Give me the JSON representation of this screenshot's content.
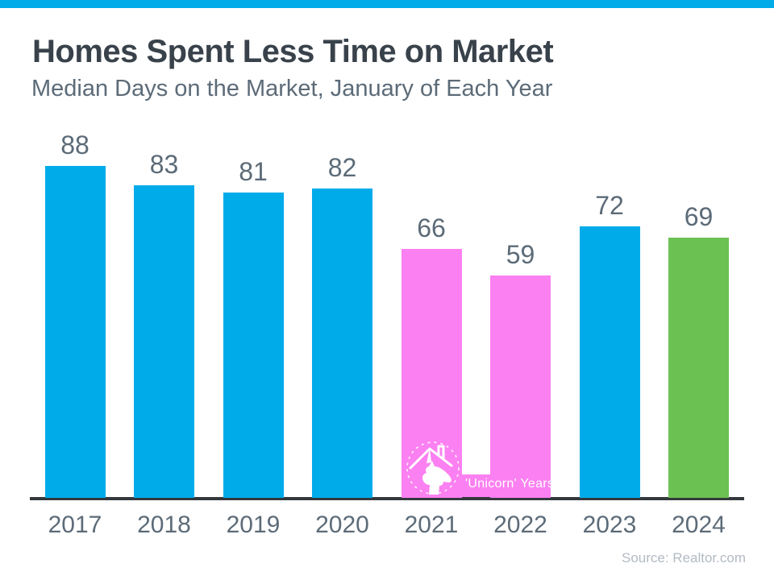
{
  "page": {
    "background": "#ffffff",
    "accent_color": "#00ABEA"
  },
  "header": {
    "title": "Homes Spent Less Time on Market",
    "subtitle": "Median Days on the Market, January of Each Year"
  },
  "footer": {
    "source": "Source: Realtor.com"
  },
  "chart_data": {
    "type": "bar",
    "title": "Homes Spent Less Time on Market",
    "subtitle": "Median Days on the Market, January of Each Year",
    "categories": [
      "2017",
      "2018",
      "2019",
      "2020",
      "2021",
      "2022",
      "2023",
      "2024"
    ],
    "values": [
      88,
      83,
      81,
      82,
      66,
      59,
      72,
      69
    ],
    "xlabel": "",
    "ylabel": "",
    "ylim": [
      0,
      95
    ],
    "grid": false,
    "legend": "none",
    "value_labels_shown": true,
    "bar_color_keys": [
      "blue",
      "blue",
      "blue",
      "blue",
      "pink",
      "pink",
      "blue",
      "green"
    ],
    "palette": {
      "blue": "#00ABEA",
      "pink": "#FB80F1",
      "green": "#6CC153"
    },
    "colors": {
      "value_label": "#5C6B78",
      "axis_label": "#5C6B78",
      "axis_line": "#33383D"
    },
    "annotation": {
      "label": "'Unicorn' Years",
      "applies_to": [
        "2021",
        "2022"
      ],
      "icon": "unicorn-house-icon",
      "text_color": "#ffffff"
    }
  }
}
